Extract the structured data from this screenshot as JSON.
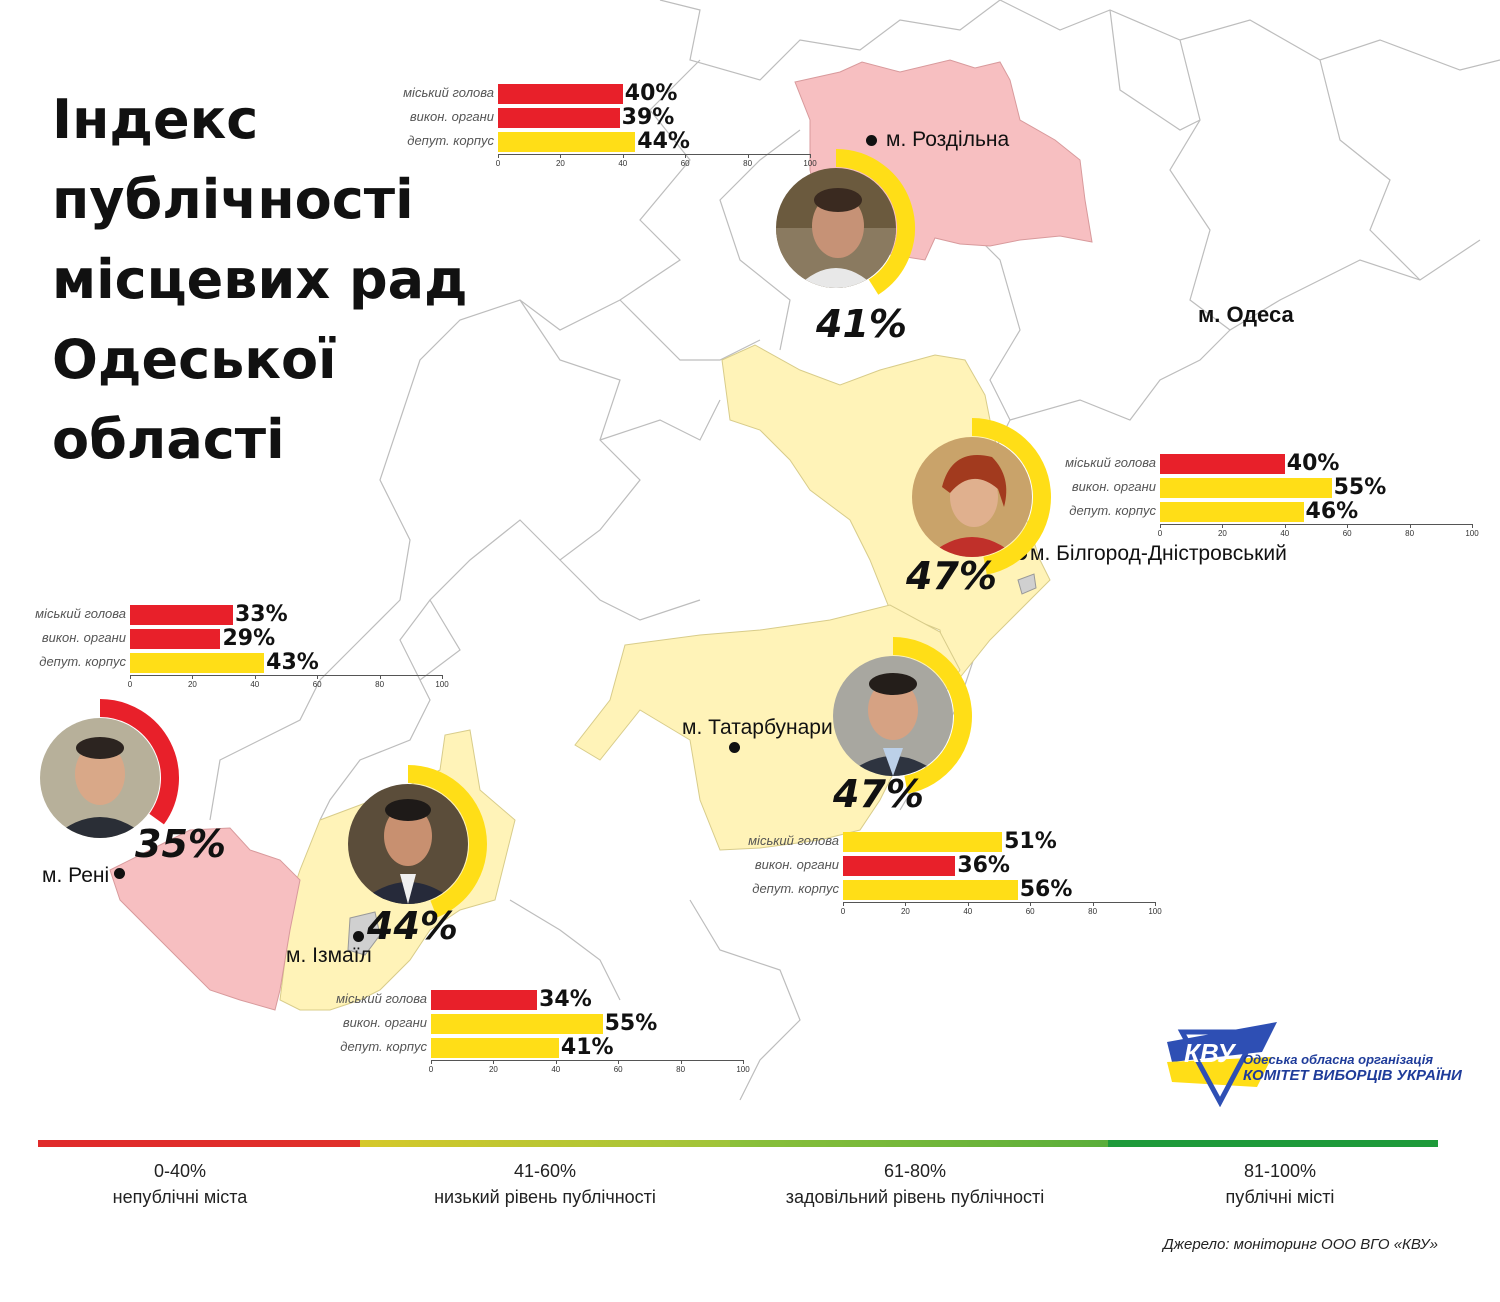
{
  "title": [
    "Індекс",
    "публічності",
    "місцевих рад",
    "Одеської",
    "області"
  ],
  "colors": {
    "red": "#e8202a",
    "yellow": "#ffde17",
    "region_red": "#f7bfc1",
    "region_yellow": "#fff3b8",
    "legend": [
      "#e02a2a",
      "#c9d22a",
      "#7dbb3a",
      "#1e9a3a"
    ]
  },
  "chart_categories": [
    "міський голова",
    "викон. органи",
    "депут. корпус"
  ],
  "axis_ticks": [
    "0",
    "20",
    "40",
    "60",
    "80",
    "100"
  ],
  "cities": [
    {
      "id": "rozdilna",
      "name": "м. Роздільна",
      "index_label": "41%",
      "index": 41,
      "bars": [
        {
          "value": 40,
          "label": "40%",
          "color": "red"
        },
        {
          "value": 39,
          "label": "39%",
          "color": "red"
        },
        {
          "value": 44,
          "label": "44%",
          "color": "yellow"
        }
      ]
    },
    {
      "id": "bilhorod",
      "name": "м. Білгород-Дністровський",
      "index_label": "47%",
      "index": 47,
      "bars": [
        {
          "value": 40,
          "label": "40%",
          "color": "red"
        },
        {
          "value": 55,
          "label": "55%",
          "color": "yellow"
        },
        {
          "value": 46,
          "label": "46%",
          "color": "yellow"
        }
      ]
    },
    {
      "id": "reni",
      "name": "м. Рені",
      "index_label": "35%",
      "index": 35,
      "bars": [
        {
          "value": 33,
          "label": "33%",
          "color": "red"
        },
        {
          "value": 29,
          "label": "29%",
          "color": "red"
        },
        {
          "value": 43,
          "label": "43%",
          "color": "yellow"
        }
      ]
    },
    {
      "id": "tatarbunary",
      "name": "м. Татарбунари",
      "index_label": "47%",
      "index": 47,
      "bars": [
        {
          "value": 51,
          "label": "51%",
          "color": "yellow"
        },
        {
          "value": 36,
          "label": "36%",
          "color": "red"
        },
        {
          "value": 56,
          "label": "56%",
          "color": "yellow"
        }
      ]
    },
    {
      "id": "izmail",
      "name": "м. Ізмаїл",
      "index_label": "44%",
      "index": 44,
      "bars": [
        {
          "value": 34,
          "label": "34%",
          "color": "red"
        },
        {
          "value": 55,
          "label": "55%",
          "color": "yellow"
        },
        {
          "value": 41,
          "label": "41%",
          "color": "yellow"
        }
      ]
    }
  ],
  "odesa_label": "м. Одеса",
  "legend": [
    {
      "range": "0-40%",
      "label": "непублічні міста"
    },
    {
      "range": "41-60%",
      "label": "низький рівень публічності"
    },
    {
      "range": "61-80%",
      "label": "задовільний рівень публічності"
    },
    {
      "range": "81-100%",
      "label": "публічні місті"
    }
  ],
  "logo": {
    "line1": "Одеська обласна організація",
    "line2": "КОМІТЕТ ВИБОРЦІВ УКРАЇНИ",
    "mark": "КВУ"
  },
  "source": "Джерело: моніторинг ООО ВГО «КВУ»"
}
